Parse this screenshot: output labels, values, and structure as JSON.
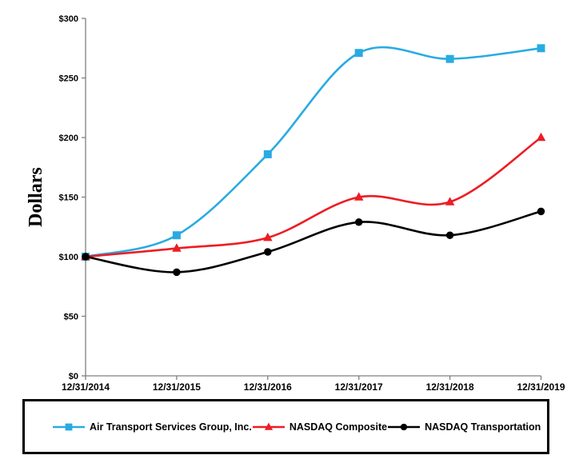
{
  "chart_data": {
    "type": "line",
    "title": "",
    "xlabel": "",
    "ylabel": "Dollars",
    "categories": [
      "12/31/2014",
      "12/31/2015",
      "12/31/2016",
      "12/31/2017",
      "12/31/2018",
      "12/31/2019"
    ],
    "ylim": [
      0,
      300
    ],
    "y_ticks": [
      {
        "value": 0,
        "label": "$0"
      },
      {
        "value": 50,
        "label": "$50"
      },
      {
        "value": 100,
        "label": "$100"
      },
      {
        "value": 150,
        "label": "$150"
      },
      {
        "value": 200,
        "label": "$200"
      },
      {
        "value": 250,
        "label": "$250"
      },
      {
        "value": 300,
        "label": "$300"
      }
    ],
    "grid": false,
    "line_smoothing": true,
    "legend_position": "bottom",
    "axis_color": "#808080",
    "series": [
      {
        "name": "Air Transport Services Group, Inc.",
        "color": "#29ABE2",
        "marker": "square",
        "values": [
          100,
          118,
          186,
          271,
          266,
          275
        ]
      },
      {
        "name": "NASDAQ Composite",
        "color": "#ED1C24",
        "marker": "triangle",
        "values": [
          100,
          107,
          116,
          150,
          146,
          200
        ]
      },
      {
        "name": "NASDAQ Transportation",
        "color": "#000000",
        "marker": "circle",
        "values": [
          100,
          87,
          104,
          129,
          118,
          138
        ]
      }
    ]
  }
}
